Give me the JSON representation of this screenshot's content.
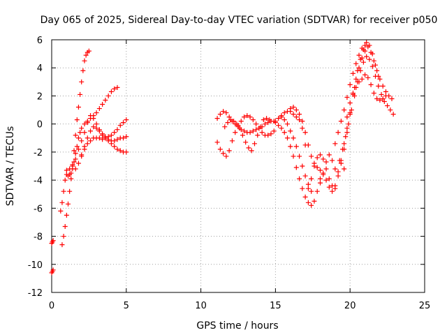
{
  "chart_data": {
    "type": "scatter",
    "title": "Day 065 of 2025, Sidereal Day-to-day VTEC variation (SDTVAR) for receiver p050",
    "xlabel": "GPS time / hours",
    "ylabel": "SDTVAR / TECUs",
    "xlim": [
      0,
      25
    ],
    "ylim": [
      -12,
      6
    ],
    "xticks": [
      "0",
      "5",
      "10",
      "15",
      "20",
      "25"
    ],
    "yticks": [
      "-12",
      "-10",
      "-8",
      "-6",
      "-4",
      "-2",
      "0",
      "2",
      "4",
      "6"
    ],
    "grid": true,
    "marker": "plus",
    "color": "#ff0000",
    "series": [
      {
        "x": [
          0.0,
          0.05,
          0.1,
          0.0,
          0.05,
          0.1,
          0.7,
          0.8,
          0.9,
          1.0,
          1.1,
          1.2,
          1.3,
          1.4,
          1.5,
          1.6,
          1.7,
          1.8,
          1.9,
          2.0,
          2.1,
          2.2,
          2.3,
          2.4,
          2.5
        ],
        "y": [
          -8.5,
          -8.4,
          -8.3,
          -10.6,
          -10.5,
          -10.4,
          -8.6,
          -8.0,
          -7.3,
          -6.5,
          -5.7,
          -4.8,
          -3.9,
          -2.9,
          -1.9,
          -0.8,
          0.3,
          1.2,
          2.1,
          3.0,
          3.8,
          4.5,
          4.9,
          5.1,
          5.2
        ]
      },
      {
        "x": [
          0.6,
          0.7,
          0.8,
          0.9,
          1.0,
          1.1,
          1.2,
          1.3,
          1.4,
          1.5,
          1.6,
          1.7,
          1.8,
          1.9,
          2.0,
          2.2,
          2.4,
          2.6,
          2.8,
          3.0,
          3.2,
          3.4,
          3.6,
          3.8,
          4.0,
          4.2,
          4.4
        ],
        "y": [
          -6.2,
          -5.6,
          -4.8,
          -4.0,
          -3.6,
          -3.7,
          -3.6,
          -3.5,
          -3.2,
          -2.7,
          -2.1,
          -1.6,
          -1.0,
          -0.6,
          -0.3,
          0.0,
          0.2,
          0.4,
          0.6,
          0.8,
          1.1,
          1.4,
          1.7,
          2.0,
          2.3,
          2.5,
          2.6
        ]
      },
      {
        "x": [
          1.0,
          1.2,
          1.4,
          1.6,
          1.8,
          2.0,
          2.2,
          2.4,
          2.6,
          2.8,
          3.0,
          3.2,
          3.4,
          3.6,
          3.8,
          4.0,
          4.2,
          4.4,
          4.6,
          4.8,
          5.0
        ],
        "y": [
          -3.3,
          -3.2,
          -3.0,
          -2.5,
          -1.8,
          -1.2,
          -0.6,
          0.1,
          0.6,
          0.4,
          0.0,
          -0.4,
          -0.8,
          -1.0,
          -1.2,
          -1.4,
          -1.6,
          -1.8,
          -1.9,
          -2.0,
          -2.0
        ]
      },
      {
        "x": [
          1.6,
          1.8,
          2.0,
          2.2,
          2.4,
          2.6,
          2.8,
          3.0,
          3.2,
          3.4,
          3.6,
          3.8,
          4.0,
          4.2,
          4.4,
          4.6,
          4.8,
          5.0
        ],
        "y": [
          -3.2,
          -2.8,
          -2.3,
          -1.8,
          -1.4,
          -1.2,
          -1.0,
          -1.0,
          -1.0,
          -1.1,
          -1.0,
          -0.9,
          -0.8,
          -0.6,
          -0.4,
          -0.1,
          0.1,
          0.3
        ]
      },
      {
        "x": [
          2.0,
          2.2,
          2.4,
          2.6,
          2.8,
          3.0,
          3.2,
          3.4,
          3.6,
          3.8,
          4.0,
          4.2,
          4.4,
          4.6,
          4.8,
          5.0
        ],
        "y": [
          -2.2,
          -1.6,
          -1.0,
          -0.5,
          -0.2,
          -0.3,
          -0.5,
          -0.7,
          -0.9,
          -1.1,
          -1.2,
          -1.2,
          -1.1,
          -1.0,
          -1.0,
          -0.9
        ]
      },
      {
        "x": [
          11.1,
          11.3,
          11.5,
          11.7,
          11.9,
          12.1,
          12.3,
          12.5,
          12.7,
          12.9,
          13.1,
          13.3,
          13.5,
          13.7,
          13.9,
          14.1,
          14.3,
          14.5,
          14.7,
          14.9
        ],
        "y": [
          0.4,
          0.7,
          0.9,
          0.8,
          0.5,
          0.2,
          0.0,
          -0.2,
          -0.4,
          -0.5,
          -0.6,
          -0.6,
          -0.5,
          -0.4,
          -0.3,
          -0.2,
          0.0,
          0.1,
          0.2,
          0.2
        ]
      },
      {
        "x": [
          11.1,
          11.3,
          11.5,
          11.7,
          11.9,
          12.1,
          12.3,
          12.5,
          12.7,
          12.9,
          13.1,
          13.3,
          13.5,
          13.7,
          13.9,
          14.1,
          14.3,
          14.5,
          14.7,
          14.9
        ],
        "y": [
          -1.3,
          -1.8,
          -2.1,
          -2.3,
          -1.9,
          -1.2,
          -0.6,
          -0.1,
          0.2,
          0.5,
          0.6,
          0.5,
          0.3,
          0.0,
          -0.3,
          -0.6,
          -0.8,
          -0.8,
          -0.7,
          -0.5
        ]
      },
      {
        "x": [
          11.6,
          11.8,
          12.0,
          12.2,
          12.4,
          12.6,
          12.8,
          13.0,
          13.2,
          13.4,
          13.6,
          13.8,
          14.0,
          14.2,
          14.4,
          14.6
        ],
        "y": [
          -0.2,
          0.1,
          0.3,
          0.2,
          0.0,
          -0.3,
          -0.8,
          -1.3,
          -1.7,
          -1.9,
          -1.4,
          -0.8,
          -0.2,
          0.3,
          0.4,
          0.3
        ]
      },
      {
        "x": [
          15.0,
          15.2,
          15.4,
          15.6,
          15.8,
          16.0,
          16.2,
          16.4,
          16.6,
          16.8,
          17.0,
          17.2,
          17.4,
          17.6,
          17.8,
          18.0
        ],
        "y": [
          0.1,
          -0.1,
          -0.3,
          -0.6,
          -1.0,
          -1.6,
          -2.3,
          -3.1,
          -3.9,
          -4.6,
          -5.2,
          -5.6,
          -5.8,
          -5.5,
          -4.8,
          -3.9
        ]
      },
      {
        "x": [
          15.0,
          15.2,
          15.4,
          15.6,
          15.8,
          16.0,
          16.2,
          16.4,
          16.6,
          16.8,
          17.0
        ],
        "y": [
          0.2,
          0.4,
          0.6,
          0.8,
          0.9,
          0.9,
          0.7,
          0.5,
          0.3,
          -0.3,
          -1.5
        ]
      },
      {
        "x": [
          15.4,
          15.6,
          15.8,
          16.0,
          16.2,
          16.4,
          16.6,
          16.8,
          17.0,
          17.2,
          17.4
        ],
        "y": [
          0.5,
          0.3,
          0.0,
          -0.5,
          -1.0,
          -1.6,
          -2.3,
          -3.0,
          -3.7,
          -4.3,
          -4.8
        ]
      },
      {
        "x": [
          16.0,
          16.2,
          16.4,
          16.6,
          16.8,
          17.0,
          17.2,
          17.4,
          17.6,
          17.8,
          18.0,
          18.2,
          18.4,
          18.6,
          18.8,
          19.0
        ],
        "y": [
          1.1,
          1.2,
          1.0,
          0.7,
          0.2,
          -0.6,
          -1.5,
          -2.3,
          -2.8,
          -3.1,
          -3.3,
          -3.6,
          -4.0,
          -4.5,
          -4.8,
          -4.6
        ]
      },
      {
        "x": [
          17.2,
          17.4,
          17.6,
          17.8,
          18.0,
          18.2,
          18.4,
          18.6,
          18.8,
          19.0,
          19.2,
          19.4,
          19.6,
          19.8,
          20.0
        ],
        "y": [
          -4.6,
          -3.9,
          -3.0,
          -2.4,
          -2.2,
          -2.5,
          -3.2,
          -3.9,
          -4.4,
          -4.4,
          -3.7,
          -2.6,
          -1.4,
          -0.3,
          0.7
        ]
      },
      {
        "x": [
          18.0,
          18.2,
          18.4,
          18.6,
          18.8,
          19.0,
          19.2,
          19.4,
          19.6,
          19.8,
          20.0,
          20.2,
          20.4,
          20.6,
          20.8,
          21.0
        ],
        "y": [
          -4.2,
          -3.5,
          -2.7,
          -2.2,
          -2.6,
          -3.2,
          -3.4,
          -2.8,
          -1.8,
          -0.6,
          0.8,
          2.1,
          3.2,
          4.0,
          4.7,
          5.2
        ]
      },
      {
        "x": [
          19.0,
          19.2,
          19.4,
          19.6,
          19.8,
          20.0,
          20.2,
          20.4,
          20.6,
          20.8,
          21.0,
          21.2,
          21.4,
          21.6,
          21.8,
          22.0,
          22.2,
          22.4,
          22.6,
          22.8
        ],
        "y": [
          -1.4,
          -0.6,
          0.2,
          1.0,
          1.9,
          2.8,
          3.6,
          4.3,
          4.9,
          5.4,
          5.6,
          5.5,
          5.1,
          4.5,
          3.8,
          3.2,
          2.7,
          2.3,
          2.0,
          1.8
        ]
      },
      {
        "x": [
          19.3,
          19.5,
          19.7,
          19.9,
          20.1,
          20.3,
          20.5,
          20.7,
          20.9,
          21.1,
          21.3,
          21.5,
          21.7,
          21.9,
          22.1,
          22.3,
          22.5,
          22.7,
          22.9
        ],
        "y": [
          -2.6,
          -1.8,
          -0.9,
          0.0,
          1.0,
          2.0,
          3.0,
          3.8,
          4.4,
          4.8,
          4.6,
          4.1,
          3.4,
          2.7,
          2.1,
          1.6,
          1.3,
          1.0,
          0.7
        ]
      },
      {
        "x": [
          19.6,
          19.8,
          20.0,
          20.2,
          20.4,
          20.6,
          20.8,
          21.0,
          21.2,
          21.4,
          21.6,
          21.8,
          22.0,
          22.2,
          22.4
        ],
        "y": [
          -3.2,
          0.5,
          1.5,
          2.2,
          2.6,
          3.0,
          3.2,
          3.5,
          3.3,
          2.8,
          2.2,
          1.8,
          1.7,
          1.8,
          2.0
        ]
      },
      {
        "x": [
          20.3,
          20.5,
          20.7,
          20.9,
          21.1,
          21.3,
          21.5,
          21.7,
          21.9
        ],
        "y": [
          2.6,
          3.8,
          4.6,
          5.3,
          5.8,
          5.6,
          5.0,
          4.2,
          3.4
        ]
      }
    ]
  }
}
